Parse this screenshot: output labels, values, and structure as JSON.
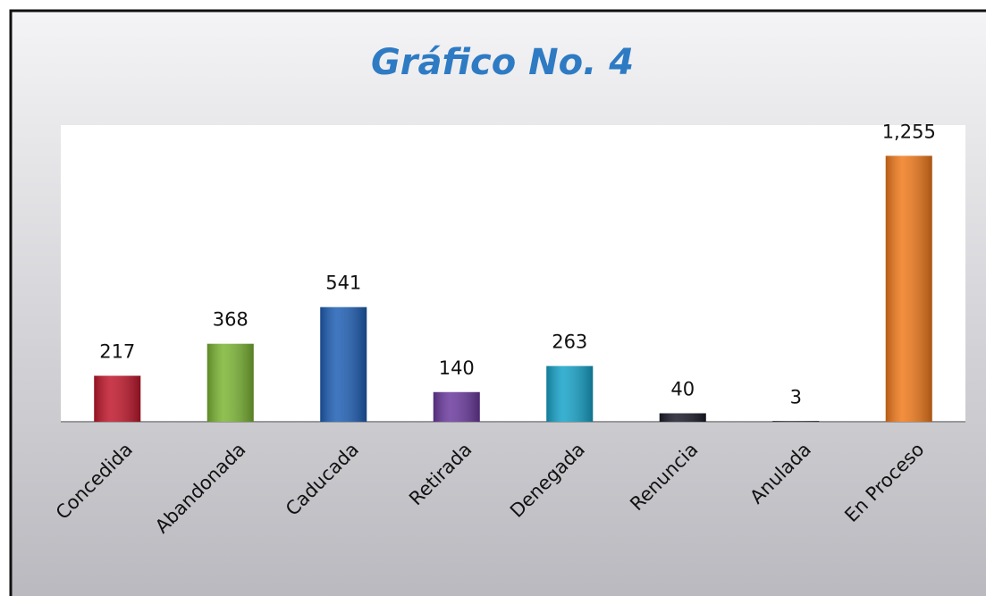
{
  "chart_data": {
    "type": "bar",
    "title": "Gráfico No. 4",
    "categories": [
      "Concedida",
      "Abandonada",
      "Caducada",
      "Retirada",
      "Denegada",
      "Renuncia",
      "Anulada",
      "En Proceso"
    ],
    "values": [
      217,
      368,
      541,
      140,
      263,
      40,
      3,
      1255
    ],
    "value_labels": [
      "217",
      "368",
      "541",
      "140",
      "263",
      "40",
      "3",
      "1,255"
    ],
    "colors": [
      "#c0182c",
      "#7cb534",
      "#1f5fb5",
      "#6b3a9e",
      "#17a3c9",
      "#1a1a2a",
      "#222222",
      "#f07a1c"
    ],
    "ylim": [
      0,
      1400
    ]
  }
}
